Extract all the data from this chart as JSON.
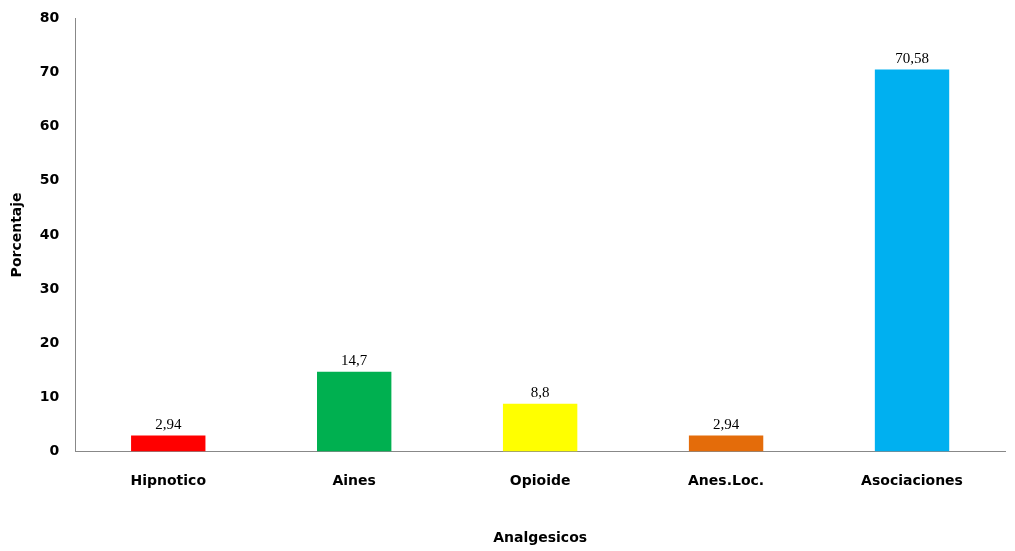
{
  "chart_data": {
    "type": "bar",
    "xlabel": "Analgesicos",
    "ylabel": "Porcentaje",
    "categories": [
      "Hipnotico",
      "Aines",
      "Opioide",
      "Anes.Loc.",
      "Asociaciones"
    ],
    "values": [
      2.94,
      14.7,
      8.8,
      2.94,
      70.58
    ],
    "value_labels": [
      "2,94",
      "14,7",
      "8,8",
      "2,94",
      "70,58"
    ],
    "colors": [
      "#ff0000",
      "#00b050",
      "#ffff00",
      "#e46c0a",
      "#00b0f0"
    ],
    "ylim": [
      0,
      80
    ],
    "yticks": [
      0,
      10,
      20,
      30,
      40,
      50,
      60,
      70,
      80
    ],
    "grid": false,
    "legend": false
  }
}
